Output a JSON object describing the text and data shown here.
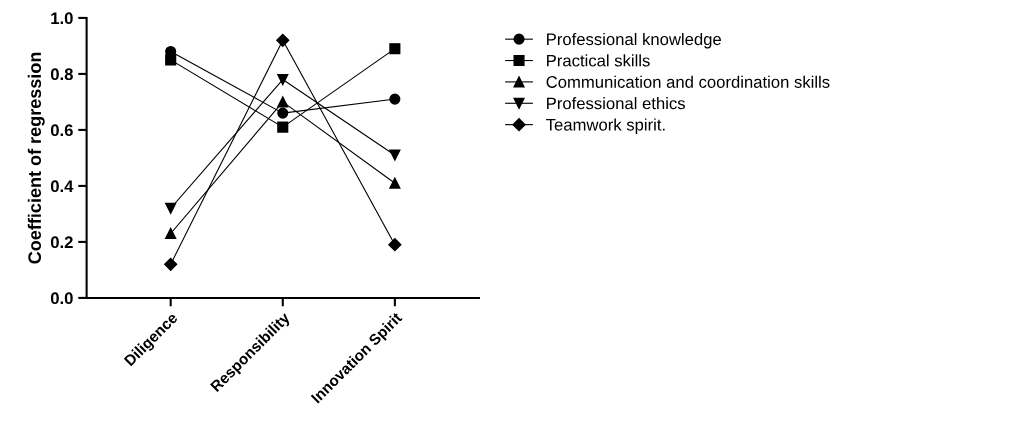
{
  "chart_data": {
    "type": "line",
    "ylabel": "Coefficient of regression",
    "categories": [
      "Diligence",
      "Responsibility",
      "Innovation Spirit"
    ],
    "series": [
      {
        "name": "Professional knowledge",
        "color": "#000000",
        "marker": "circle",
        "values": [
          0.88,
          0.66,
          0.71
        ]
      },
      {
        "name": "Practical skills",
        "color": "#000000",
        "marker": "square",
        "values": [
          0.85,
          0.61,
          0.89
        ]
      },
      {
        "name": "Communication and coordination skills",
        "color": "#000000",
        "marker": "triangle",
        "values": [
          0.23,
          0.7,
          0.41
        ]
      },
      {
        "name": "Professional ethics",
        "color": "#000000",
        "marker": "triangle_down",
        "values": [
          0.32,
          0.78,
          0.51
        ]
      },
      {
        "name": "Teamwork spirit.",
        "color": "#000000",
        "marker": "diamond",
        "values": [
          0.12,
          0.92,
          0.19
        ]
      }
    ],
    "ylim": [
      0,
      1.0
    ],
    "yticks": [
      {
        "value": 0,
        "label": "0.0"
      },
      {
        "value": 0.2,
        "label": "0.2"
      },
      {
        "value": 0.4,
        "label": "0.4"
      },
      {
        "value": 0.6,
        "label": "0.6"
      },
      {
        "value": 0.8,
        "label": "0.8"
      },
      {
        "value": 1.0,
        "label": "1.0"
      }
    ],
    "grid": false,
    "legend": "right",
    "line_style": "solid"
  }
}
